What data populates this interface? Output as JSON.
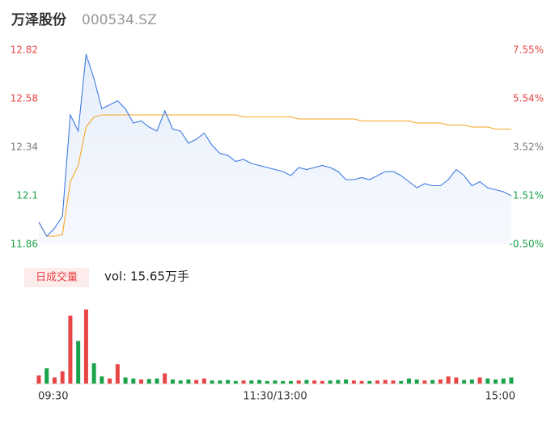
{
  "header": {
    "name": "万泽股份",
    "code": "000534.SZ"
  },
  "chart_data": {
    "type": "intraday",
    "x": [
      0,
      4,
      8,
      12,
      16,
      20,
      24,
      28,
      32,
      36,
      40,
      44,
      48,
      52,
      56,
      60,
      64,
      68,
      72,
      76,
      80,
      84,
      88,
      92,
      96,
      100,
      104,
      108,
      112,
      116,
      120,
      124,
      128,
      132,
      136,
      140,
      144,
      148,
      152,
      156,
      160,
      164,
      168,
      172,
      176,
      180,
      184,
      188,
      192,
      196,
      200,
      204,
      208,
      212,
      216,
      220,
      224,
      228,
      232,
      236,
      240
    ],
    "xlim": [
      0,
      240
    ],
    "xticks": [
      {
        "value": 0,
        "label": "09:30"
      },
      {
        "value": 120,
        "label": "11:30/13:00"
      },
      {
        "value": 240,
        "label": "15:00"
      }
    ],
    "ylim": [
      11.86,
      12.82
    ],
    "yticks": [
      11.86,
      12.1,
      12.34,
      12.58,
      12.82
    ],
    "ytick_colors": [
      "#1aa34a",
      "#1aa34a",
      "#777777",
      "#e84545",
      "#e84545"
    ],
    "y2lim": [
      -0.5,
      7.55
    ],
    "y2ticks": [
      {
        "value": -0.5,
        "label": "-0.50%"
      },
      {
        "value": 1.51,
        "label": "1.51%"
      },
      {
        "value": 3.52,
        "label": "3.52%"
      },
      {
        "value": 5.54,
        "label": "5.54%"
      },
      {
        "value": 7.55,
        "label": "7.55%"
      }
    ],
    "price": {
      "color": "#3d7be0",
      "values": [
        11.97,
        11.9,
        11.94,
        12.0,
        12.5,
        12.42,
        12.8,
        12.68,
        12.53,
        12.55,
        12.57,
        12.53,
        12.46,
        12.47,
        12.44,
        12.42,
        12.52,
        12.43,
        12.42,
        12.36,
        12.38,
        12.41,
        12.35,
        12.31,
        12.3,
        12.27,
        12.28,
        12.26,
        12.25,
        12.24,
        12.23,
        12.22,
        12.2,
        12.24,
        12.23,
        12.24,
        12.25,
        12.24,
        12.22,
        12.18,
        12.18,
        12.19,
        12.18,
        12.2,
        12.22,
        12.22,
        12.2,
        12.17,
        12.14,
        12.16,
        12.15,
        12.15,
        12.18,
        12.23,
        12.2,
        12.15,
        12.17,
        12.14,
        12.13,
        12.12,
        12.1
      ]
    },
    "average": {
      "color": "#f5a623",
      "values": [
        11.97,
        11.9,
        11.9,
        11.91,
        12.17,
        12.25,
        12.44,
        12.49,
        12.5,
        12.5,
        12.5,
        12.5,
        12.5,
        12.5,
        12.5,
        12.5,
        12.5,
        12.5,
        12.5,
        12.5,
        12.5,
        12.5,
        12.5,
        12.5,
        12.5,
        12.5,
        12.49,
        12.49,
        12.49,
        12.49,
        12.49,
        12.49,
        12.49,
        12.48,
        12.48,
        12.48,
        12.48,
        12.48,
        12.48,
        12.48,
        12.48,
        12.47,
        12.47,
        12.47,
        12.47,
        12.47,
        12.47,
        12.47,
        12.46,
        12.46,
        12.46,
        12.46,
        12.45,
        12.45,
        12.45,
        12.44,
        12.44,
        12.44,
        12.43,
        12.43,
        12.43
      ]
    },
    "volume": {
      "title": "日成交量",
      "label": "vol: 15.65万手",
      "vlim": [
        0,
        7500
      ],
      "up_color": "#e84545",
      "down_color": "#1aa34a",
      "values": [
        800,
        1500,
        600,
        1200,
        6700,
        4200,
        7300,
        2000,
        700,
        500,
        1900,
        600,
        500,
        400,
        450,
        500,
        1000,
        400,
        300,
        400,
        350,
        500,
        300,
        300,
        350,
        250,
        300,
        300,
        350,
        250,
        300,
        250,
        250,
        300,
        350,
        300,
        250,
        300,
        350,
        400,
        300,
        250,
        250,
        300,
        350,
        300,
        250,
        500,
        400,
        300,
        350,
        400,
        700,
        600,
        350,
        400,
        600,
        500,
        400,
        500,
        600
      ]
    }
  }
}
